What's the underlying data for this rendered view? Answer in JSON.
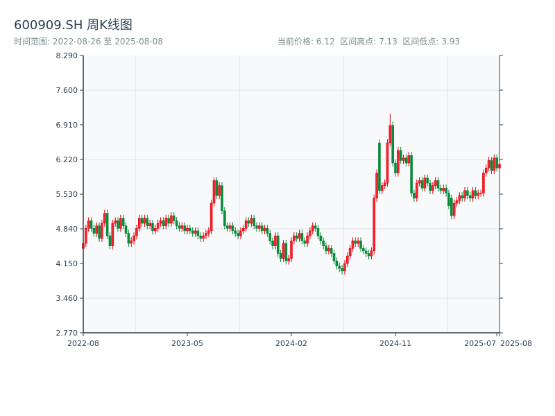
{
  "header": {
    "title": "600909.SH 周K线图",
    "range_text": "时间范围: 2022-08-26 至 2025-08-08",
    "stats_text": "当前价格: 6.12  区间高点: 7.13  区间低点: 3.93"
  },
  "colors": {
    "up": "#e0000f",
    "down": "#0a8a3a",
    "axis": "#2c3e50",
    "grid": "#e0e3e8",
    "plot_bg": "#f7f9fb"
  },
  "chart_data": {
    "type": "candlestick",
    "title": "600909.SH 周K线图",
    "ylim": [
      2.77,
      8.29
    ],
    "y_ticks": [
      "2.770",
      "3.460",
      "4.150",
      "4.840",
      "5.530",
      "6.220",
      "6.910",
      "7.600",
      "8.290"
    ],
    "x_ticks": [
      {
        "label": "2022-08",
        "index": 0
      },
      {
        "label": "2023-05",
        "index": 39
      },
      {
        "label": "2024-02",
        "index": 78
      },
      {
        "label": "2024-11",
        "index": 117
      },
      {
        "label": "2025-07",
        "index": 155
      },
      {
        "label": "2025-08",
        "index": 156
      }
    ],
    "grid": true,
    "high_point": {
      "index": 115,
      "value": 7.13
    },
    "low_point": {
      "index": 97,
      "value": 3.93
    },
    "close": [
      4.55,
      4.85,
      5.0,
      4.85,
      4.75,
      4.9,
      4.65,
      4.95,
      5.15,
      4.7,
      4.5,
      4.95,
      5.0,
      4.85,
      5.05,
      4.9,
      4.75,
      4.55,
      4.6,
      4.7,
      4.85,
      5.05,
      4.95,
      5.05,
      4.9,
      4.95,
      4.8,
      4.85,
      4.95,
      5.0,
      4.9,
      5.05,
      4.95,
      5.1,
      5.0,
      4.9,
      4.85,
      4.9,
      4.8,
      4.85,
      4.8,
      4.75,
      4.8,
      4.7,
      4.65,
      4.7,
      4.75,
      4.8,
      5.35,
      5.8,
      5.5,
      5.7,
      5.2,
      4.9,
      4.85,
      4.9,
      4.8,
      4.75,
      4.7,
      4.8,
      4.85,
      5.0,
      4.95,
      5.05,
      4.9,
      4.85,
      4.9,
      4.8,
      4.85,
      4.75,
      4.6,
      4.5,
      4.7,
      4.35,
      4.25,
      4.55,
      4.2,
      4.25,
      4.6,
      4.7,
      4.65,
      4.75,
      4.6,
      4.55,
      4.7,
      4.8,
      4.9,
      4.85,
      4.7,
      4.6,
      4.5,
      4.4,
      4.45,
      4.35,
      4.2,
      4.1,
      4.05,
      4.0,
      4.15,
      4.3,
      4.45,
      4.6,
      4.55,
      4.6,
      4.45,
      4.4,
      4.35,
      4.3,
      4.4,
      5.45,
      5.95,
      5.6,
      5.7,
      5.75,
      6.55,
      6.9,
      6.15,
      5.95,
      6.4,
      6.2,
      6.25,
      6.15,
      6.3,
      5.55,
      5.45,
      5.75,
      5.8,
      5.65,
      5.85,
      5.75,
      5.6,
      5.7,
      5.8,
      5.65,
      5.6,
      5.65,
      5.55,
      5.3,
      5.1,
      5.35,
      5.4,
      5.5,
      5.45,
      5.6,
      5.5,
      5.45,
      5.6,
      5.5,
      5.55,
      5.55,
      5.95,
      6.05,
      6.2,
      6.0,
      6.25,
      6.05,
      6.12
    ],
    "open_first": 4.45,
    "open_overrides": {
      "111": 6.55,
      "138": 5.45
    }
  }
}
